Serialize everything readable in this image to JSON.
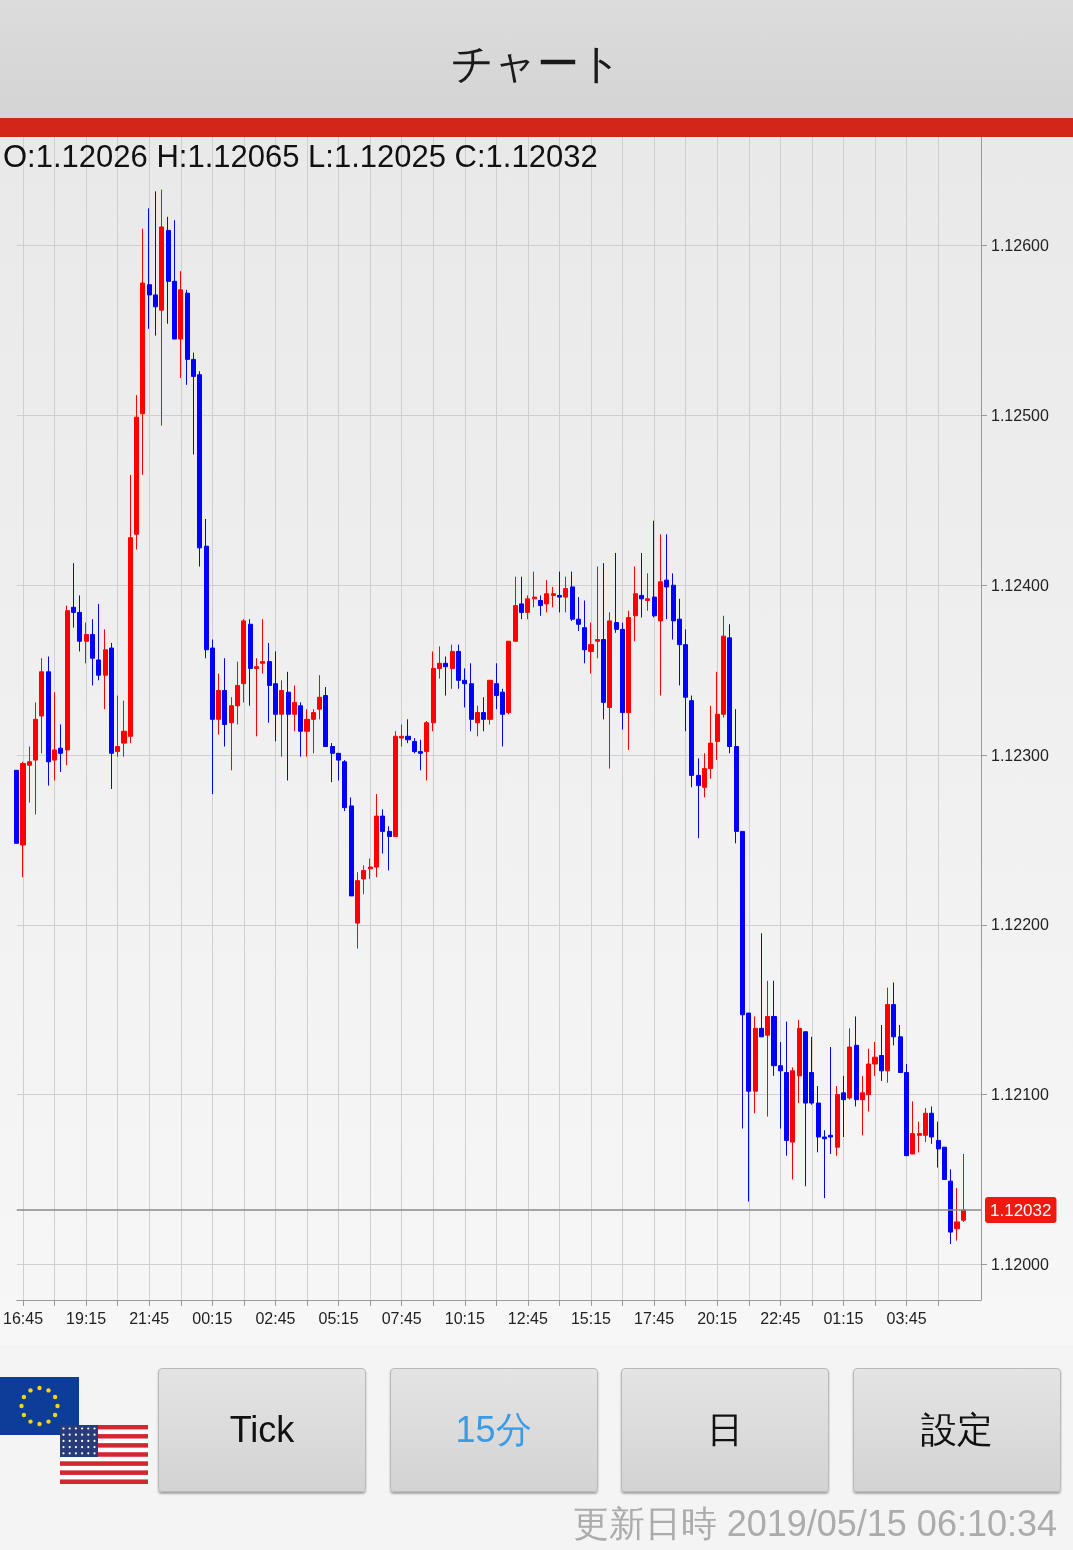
{
  "chart_data": {
    "type": "candlestick",
    "title": "チャート",
    "annotations": [
      "O:1.12026 H:1.12065 L:1.12025 C:1.12032",
      "Tick",
      "15分",
      "日",
      "設定",
      "更新日時 2019/05/15 06:10:34"
    ],
    "x": [
      "2019-05-13T16:30",
      "2019-05-13T16:45",
      "2019-05-13T17:00",
      "2019-05-13T17:15",
      "2019-05-13T17:30",
      "2019-05-13T17:45",
      "2019-05-13T18:00",
      "2019-05-13T18:15",
      "2019-05-13T18:30",
      "2019-05-13T18:45",
      "2019-05-13T19:00",
      "2019-05-13T19:15",
      "2019-05-13T19:30",
      "2019-05-13T19:45",
      "2019-05-13T20:00",
      "2019-05-13T20:15",
      "2019-05-13T20:30",
      "2019-05-13T20:45",
      "2019-05-13T21:00",
      "2019-05-13T21:15",
      "2019-05-13T21:30",
      "2019-05-13T21:45",
      "2019-05-13T22:00",
      "2019-05-13T22:15",
      "2019-05-13T22:30",
      "2019-05-13T22:45",
      "2019-05-13T23:00",
      "2019-05-13T23:15",
      "2019-05-13T23:30",
      "2019-05-13T23:45",
      "2019-05-14T00:00",
      "2019-05-14T00:15",
      "2019-05-14T00:30",
      "2019-05-14T00:45",
      "2019-05-14T01:00",
      "2019-05-14T01:15",
      "2019-05-14T01:30",
      "2019-05-14T01:45",
      "2019-05-14T02:00",
      "2019-05-14T02:15",
      "2019-05-14T02:30",
      "2019-05-14T02:45",
      "2019-05-14T03:00",
      "2019-05-14T03:15",
      "2019-05-14T03:30",
      "2019-05-14T03:45",
      "2019-05-14T04:00",
      "2019-05-14T04:15",
      "2019-05-14T04:30",
      "2019-05-14T04:45",
      "2019-05-14T05:00",
      "2019-05-14T05:15",
      "2019-05-14T05:30",
      "2019-05-14T05:45",
      "2019-05-14T06:00",
      "2019-05-14T06:15",
      "2019-05-14T06:30",
      "2019-05-14T06:45",
      "2019-05-14T07:00",
      "2019-05-14T07:15",
      "2019-05-14T07:30",
      "2019-05-14T07:45",
      "2019-05-14T08:00",
      "2019-05-14T08:15",
      "2019-05-14T08:30",
      "2019-05-14T08:45",
      "2019-05-14T09:00",
      "2019-05-14T09:15",
      "2019-05-14T09:30",
      "2019-05-14T09:45",
      "2019-05-14T10:00",
      "2019-05-14T10:15",
      "2019-05-14T10:30",
      "2019-05-14T10:45",
      "2019-05-14T11:00",
      "2019-05-14T11:15",
      "2019-05-14T11:30",
      "2019-05-14T11:45",
      "2019-05-14T12:00",
      "2019-05-14T12:15",
      "2019-05-14T12:30",
      "2019-05-14T12:45",
      "2019-05-14T13:00",
      "2019-05-14T13:15",
      "2019-05-14T13:30",
      "2019-05-14T13:45",
      "2019-05-14T14:00",
      "2019-05-14T14:15",
      "2019-05-14T14:30",
      "2019-05-14T14:45",
      "2019-05-14T15:00",
      "2019-05-14T15:15",
      "2019-05-14T15:30",
      "2019-05-14T15:45",
      "2019-05-14T16:00",
      "2019-05-14T16:15",
      "2019-05-14T16:30",
      "2019-05-14T16:45",
      "2019-05-14T17:00",
      "2019-05-14T17:15",
      "2019-05-14T17:30",
      "2019-05-14T17:45",
      "2019-05-14T18:00",
      "2019-05-14T18:15",
      "2019-05-14T18:30",
      "2019-05-14T18:45",
      "2019-05-14T19:00",
      "2019-05-14T19:15",
      "2019-05-14T19:30",
      "2019-05-14T19:45",
      "2019-05-14T20:00",
      "2019-05-14T20:15",
      "2019-05-14T20:30",
      "2019-05-14T20:45",
      "2019-05-14T21:00",
      "2019-05-14T21:15",
      "2019-05-14T21:30",
      "2019-05-14T21:45",
      "2019-05-14T22:00",
      "2019-05-14T22:15",
      "2019-05-14T22:30",
      "2019-05-14T22:45",
      "2019-05-14T23:00",
      "2019-05-14T23:15",
      "2019-05-14T23:30",
      "2019-05-14T23:45",
      "2019-05-15T00:00",
      "2019-05-15T00:15",
      "2019-05-15T00:30",
      "2019-05-15T00:45",
      "2019-05-15T01:00",
      "2019-05-15T01:15",
      "2019-05-15T01:30",
      "2019-05-15T01:45",
      "2019-05-15T02:00",
      "2019-05-15T02:15",
      "2019-05-15T02:30",
      "2019-05-15T02:45",
      "2019-05-15T03:00",
      "2019-05-15T03:15",
      "2019-05-15T03:30",
      "2019-05-15T03:45",
      "2019-05-15T04:00",
      "2019-05-15T04:15",
      "2019-05-15T04:30",
      "2019-05-15T04:45",
      "2019-05-15T05:00",
      "2019-05-15T05:15",
      "2019-05-15T05:30",
      "2019-05-15T05:45",
      "2019-05-15T06:00"
    ],
    "ohlc": [
      [
        1.12291,
        1.12291,
        1.12248,
        1.12248
      ],
      [
        1.12247,
        1.12296,
        1.12228,
        1.12295
      ],
      [
        1.12294,
        1.12305,
        1.12272,
        1.12296
      ],
      [
        1.12297,
        1.12331,
        1.12265,
        1.12321
      ],
      [
        1.12323,
        1.12357,
        1.12301,
        1.12349
      ],
      [
        1.12349,
        1.12358,
        1.12282,
        1.12296
      ],
      [
        1.12297,
        1.12337,
        1.12285,
        1.12303
      ],
      [
        1.12304,
        1.12318,
        1.1229,
        1.12301
      ],
      [
        1.12303,
        1.12388,
        1.12294,
        1.12385
      ],
      [
        1.12387,
        1.12413,
        1.12375,
        1.12384
      ],
      [
        1.12384,
        1.12394,
        1.12361,
        1.12367
      ],
      [
        1.12367,
        1.12378,
        1.12354,
        1.12371
      ],
      [
        1.12371,
        1.1238,
        1.12341,
        1.12357
      ],
      [
        1.12356,
        1.12389,
        1.12344,
        1.12347
      ],
      [
        1.12347,
        1.12374,
        1.12327,
        1.12362
      ],
      [
        1.12363,
        1.12366,
        1.1228,
        1.12301
      ],
      [
        1.12302,
        1.12335,
        1.12299,
        1.12305
      ],
      [
        1.12307,
        1.12332,
        1.12299,
        1.12314
      ],
      [
        1.12311,
        1.12465,
        1.12307,
        1.12428
      ],
      [
        1.1243,
        1.12512,
        1.12421,
        1.12499
      ],
      [
        1.12501,
        1.1261,
        1.12465,
        1.12578
      ],
      [
        1.12577,
        1.12622,
        1.12551,
        1.12571
      ],
      [
        1.12571,
        1.12632,
        1.12547,
        1.12564
      ],
      [
        1.12562,
        1.12633,
        1.12494,
        1.12611
      ],
      [
        1.12609,
        1.12617,
        1.12554,
        1.12579
      ],
      [
        1.12579,
        1.12615,
        1.12545,
        1.12545
      ],
      [
        1.12545,
        1.12585,
        1.12522,
        1.12574
      ],
      [
        1.12572,
        1.12574,
        1.12518,
        1.12533
      ],
      [
        1.12533,
        1.12537,
        1.12477,
        1.12523
      ],
      [
        1.12524,
        1.12526,
        1.12411,
        1.12422
      ],
      [
        1.12423,
        1.12439,
        1.12357,
        1.12362
      ],
      [
        1.12363,
        1.12368,
        1.12277,
        1.12321
      ],
      [
        1.12321,
        1.12348,
        1.12312,
        1.12338
      ],
      [
        1.12338,
        1.12357,
        1.12305,
        1.12318
      ],
      [
        1.12319,
        1.12334,
        1.12291,
        1.12329
      ],
      [
        1.12329,
        1.12355,
        1.12318,
        1.12341
      ],
      [
        1.12342,
        1.1238,
        1.12331,
        1.12379
      ],
      [
        1.12377,
        1.1238,
        1.12329,
        1.12351
      ],
      [
        1.12351,
        1.12357,
        1.12311,
        1.12352
      ],
      [
        1.12354,
        1.1238,
        1.12348,
        1.12355
      ],
      [
        1.12355,
        1.12366,
        1.12319,
        1.12341
      ],
      [
        1.12342,
        1.12361,
        1.12308,
        1.12324
      ],
      [
        1.12324,
        1.12344,
        1.12299,
        1.12338
      ],
      [
        1.12337,
        1.12349,
        1.12285,
        1.12324
      ],
      [
        1.12324,
        1.12341,
        1.12314,
        1.12331
      ],
      [
        1.12329,
        1.12331,
        1.12299,
        1.12314
      ],
      [
        1.12314,
        1.12327,
        1.12299,
        1.12321
      ],
      [
        1.12321,
        1.12327,
        1.12301,
        1.12325
      ],
      [
        1.12327,
        1.12347,
        1.12321,
        1.12334
      ],
      [
        1.12335,
        1.1234,
        1.12305,
        1.12305
      ],
      [
        1.12305,
        1.12307,
        1.12284,
        1.12301
      ],
      [
        1.12301,
        1.12301,
        1.12285,
        1.12297
      ],
      [
        1.12296,
        1.12297,
        1.12267,
        1.12269
      ],
      [
        1.1227,
        1.12275,
        1.12217,
        1.12217
      ],
      [
        1.12201,
        1.12231,
        1.12186,
        1.12226
      ],
      [
        1.12227,
        1.12235,
        1.12218,
        1.12232
      ],
      [
        1.12233,
        1.12239,
        1.12227,
        1.12234
      ],
      [
        1.12234,
        1.12277,
        1.12228,
        1.12264
      ],
      [
        1.12264,
        1.12268,
        1.12242,
        1.12255
      ],
      [
        1.12255,
        1.12258,
        1.12232,
        1.12252
      ],
      [
        1.12252,
        1.12314,
        1.12252,
        1.12311
      ],
      [
        1.1231,
        1.12318,
        1.12305,
        1.12311
      ],
      [
        1.12311,
        1.12321,
        1.12307,
        1.12309
      ],
      [
        1.12308,
        1.1231,
        1.12301,
        1.12302
      ],
      [
        1.12302,
        1.12309,
        1.12291,
        1.12301
      ],
      [
        1.12302,
        1.1232,
        1.12285,
        1.12319
      ],
      [
        1.12319,
        1.12361,
        1.12314,
        1.12351
      ],
      [
        1.12351,
        1.12364,
        1.12345,
        1.12354
      ],
      [
        1.12354,
        1.12358,
        1.12335,
        1.12352
      ],
      [
        1.12351,
        1.12365,
        1.12339,
        1.12361
      ],
      [
        1.12361,
        1.12365,
        1.12339,
        1.12344
      ],
      [
        1.12344,
        1.12351,
        1.12328,
        1.12342
      ],
      [
        1.12342,
        1.12354,
        1.12314,
        1.12321
      ],
      [
        1.12319,
        1.12329,
        1.12311,
        1.12325
      ],
      [
        1.12325,
        1.12334,
        1.12314,
        1.12321
      ],
      [
        1.12321,
        1.12344,
        1.12318,
        1.12344
      ],
      [
        1.12342,
        1.12354,
        1.12327,
        1.12335
      ],
      [
        1.12337,
        1.12339,
        1.12305,
        1.12324
      ],
      [
        1.12325,
        1.12367,
        1.12324,
        1.12367
      ],
      [
        1.12367,
        1.12405,
        1.12367,
        1.12388
      ],
      [
        1.12389,
        1.12405,
        1.1238,
        1.12384
      ],
      [
        1.12384,
        1.12394,
        1.1238,
        1.12392
      ],
      [
        1.12392,
        1.12408,
        1.12387,
        1.12393
      ],
      [
        1.12391,
        1.12394,
        1.12382,
        1.12388
      ],
      [
        1.12389,
        1.12403,
        1.12384,
        1.12395
      ],
      [
        1.12394,
        1.12399,
        1.12387,
        1.12395
      ],
      [
        1.12394,
        1.12408,
        1.12384,
        1.12393
      ],
      [
        1.12393,
        1.12405,
        1.12384,
        1.12398
      ],
      [
        1.12399,
        1.12408,
        1.12379,
        1.1238
      ],
      [
        1.1238,
        1.12393,
        1.12373,
        1.12377
      ],
      [
        1.12375,
        1.12391,
        1.12354,
        1.12362
      ],
      [
        1.12361,
        1.12378,
        1.12348,
        1.12365
      ],
      [
        1.12367,
        1.12411,
        1.12357,
        1.12368
      ],
      [
        1.12368,
        1.12413,
        1.12321,
        1.12331
      ],
      [
        1.12328,
        1.12384,
        1.12292,
        1.12379
      ],
      [
        1.12378,
        1.12419,
        1.12372,
        1.12374
      ],
      [
        1.12374,
        1.12378,
        1.12315,
        1.12325
      ],
      [
        1.12325,
        1.12385,
        1.12303,
        1.12381
      ],
      [
        1.12382,
        1.12411,
        1.12367,
        1.12395
      ],
      [
        1.12394,
        1.12419,
        1.12381,
        1.12392
      ],
      [
        1.12391,
        1.12407,
        1.12385,
        1.12392
      ],
      [
        1.12393,
        1.12438,
        1.12381,
        1.12382
      ],
      [
        1.12379,
        1.1243,
        1.12335,
        1.12402
      ],
      [
        1.12403,
        1.1243,
        1.1238,
        1.12399
      ],
      [
        1.124,
        1.12407,
        1.12368,
        1.12379
      ],
      [
        1.1238,
        1.12392,
        1.12341,
        1.12365
      ],
      [
        1.12365,
        1.12374,
        1.12314,
        1.12334
      ],
      [
        1.12332,
        1.12335,
        1.12281,
        1.12288
      ],
      [
        1.12288,
        1.12298,
        1.12251,
        1.12282
      ],
      [
        1.12281,
        1.12301,
        1.12275,
        1.12292
      ],
      [
        1.12292,
        1.12329,
        1.12286,
        1.12307
      ],
      [
        1.12308,
        1.12349,
        1.12297,
        1.12324
      ],
      [
        1.12324,
        1.12382,
        1.12322,
        1.1237
      ],
      [
        1.12369,
        1.12377,
        1.12301,
        1.12305
      ],
      [
        1.12305,
        1.12327,
        1.12248,
        1.12255
      ],
      [
        1.12255,
        1.12255,
        1.1208,
        1.12147
      ],
      [
        1.12148,
        1.12148,
        1.12037,
        1.12102
      ],
      [
        1.12102,
        1.12146,
        1.12089,
        1.12139
      ],
      [
        1.12139,
        1.12195,
        1.12134,
        1.12134
      ],
      [
        1.12135,
        1.12167,
        1.12087,
        1.12146
      ],
      [
        1.12146,
        1.12167,
        1.12111,
        1.12117
      ],
      [
        1.12117,
        1.12131,
        1.1208,
        1.12114
      ],
      [
        1.12113,
        1.12143,
        1.12064,
        1.12073
      ],
      [
        1.12072,
        1.12116,
        1.1205,
        1.12114
      ],
      [
        1.12111,
        1.12144,
        1.12095,
        1.12139
      ],
      [
        1.12137,
        1.12137,
        1.12046,
        1.12095
      ],
      [
        1.12113,
        1.12134,
        1.12094,
        1.12095
      ],
      [
        1.12095,
        1.12105,
        1.12066,
        1.12075
      ],
      [
        1.12075,
        1.12079,
        1.12039,
        1.12074
      ],
      [
        1.12076,
        1.12128,
        1.12065,
        1.12075
      ],
      [
        1.12069,
        1.12105,
        1.12064,
        1.121
      ],
      [
        1.12101,
        1.12111,
        1.12075,
        1.12097
      ],
      [
        1.12098,
        1.12139,
        1.12097,
        1.12128
      ],
      [
        1.12129,
        1.12146,
        1.12093,
        1.12097
      ],
      [
        1.12097,
        1.12111,
        1.12076,
        1.12101
      ],
      [
        1.121,
        1.12127,
        1.1209,
        1.12118
      ],
      [
        1.12118,
        1.12131,
        1.12111,
        1.12122
      ],
      [
        1.12123,
        1.12141,
        1.12108,
        1.12114
      ],
      [
        1.12114,
        1.12163,
        1.12107,
        1.12153
      ],
      [
        1.12153,
        1.12166,
        1.12129,
        1.12134
      ],
      [
        1.12134,
        1.12141,
        1.12113,
        1.12113
      ],
      [
        1.12113,
        1.12118,
        1.12064,
        1.12064
      ],
      [
        1.12065,
        1.12096,
        1.12065,
        1.12077
      ],
      [
        1.12076,
        1.12084,
        1.12066,
        1.12077
      ],
      [
        1.12076,
        1.12092,
        1.12072,
        1.12089
      ],
      [
        1.12089,
        1.12093,
        1.12071,
        1.12075
      ],
      [
        1.12073,
        1.12084,
        1.12057,
        1.12068
      ],
      [
        1.12069,
        1.12069,
        1.1205,
        1.1205
      ],
      [
        1.12049,
        1.12056,
        1.12012,
        1.12019
      ],
      [
        1.12021,
        1.12045,
        1.12014,
        1.12025
      ],
      [
        1.12026,
        1.12065,
        1.12025,
        1.12032
      ]
    ],
    "colors": [
      "#0000ff",
      "#ff0000",
      "#ff0000",
      "#ff0000",
      "#ff0000",
      "#0000ff",
      "#ff0000",
      "#0000ff",
      "#ff0000",
      "#0000ff",
      "#0000ff",
      "#ff0000",
      "#0000ff",
      "#0000ff",
      "#ff0000",
      "#0000ff",
      "#ff0000",
      "#ff0000",
      "#ff0000",
      "#ff0000",
      "#ff0000",
      "#0000ff",
      "#0000ff",
      "#ff0000",
      "#0000ff",
      "#0000ff",
      "#ff0000",
      "#0000ff",
      "#0000ff",
      "#0000ff",
      "#0000ff",
      "#0000ff",
      "#ff0000",
      "#0000ff",
      "#ff0000",
      "#ff0000",
      "#ff0000",
      "#0000ff",
      "#ff0000",
      "#ff0000",
      "#0000ff",
      "#0000ff",
      "#ff0000",
      "#0000ff",
      "#ff0000",
      "#0000ff",
      "#ff0000",
      "#ff0000",
      "#ff0000",
      "#0000ff",
      "#0000ff",
      "#0000ff",
      "#0000ff",
      "#0000ff",
      "#ff0000",
      "#ff0000",
      "#ff0000",
      "#ff0000",
      "#0000ff",
      "#0000ff",
      "#ff0000",
      "#ff0000",
      "#0000ff",
      "#0000ff",
      "#0000ff",
      "#ff0000",
      "#ff0000",
      "#ff0000",
      "#0000ff",
      "#ff0000",
      "#0000ff",
      "#0000ff",
      "#0000ff",
      "#ff0000",
      "#0000ff",
      "#ff0000",
      "#0000ff",
      "#0000ff",
      "#ff0000",
      "#ff0000",
      "#0000ff",
      "#ff0000",
      "#ff0000",
      "#0000ff",
      "#ff0000",
      "#ff0000",
      "#0000ff",
      "#ff0000",
      "#0000ff",
      "#0000ff",
      "#0000ff",
      "#ff0000",
      "#ff0000",
      "#0000ff",
      "#ff0000",
      "#0000ff",
      "#0000ff",
      "#ff0000",
      "#ff0000",
      "#0000ff",
      "#ff0000",
      "#0000ff",
      "#ff0000",
      "#0000ff",
      "#0000ff",
      "#0000ff",
      "#0000ff",
      "#0000ff",
      "#0000ff",
      "#ff0000",
      "#ff0000",
      "#ff0000",
      "#ff0000",
      "#0000ff",
      "#0000ff",
      "#0000ff",
      "#0000ff",
      "#ff0000",
      "#0000ff",
      "#ff0000",
      "#0000ff",
      "#0000ff",
      "#0000ff",
      "#ff0000",
      "#ff0000",
      "#0000ff",
      "#0000ff",
      "#0000ff",
      "#0000ff",
      "#0000ff",
      "#ff0000",
      "#0000ff",
      "#ff0000",
      "#0000ff",
      "#ff0000",
      "#ff0000",
      "#ff0000",
      "#0000ff",
      "#ff0000",
      "#0000ff",
      "#0000ff",
      "#0000ff",
      "#ff0000",
      "#ff0000",
      "#ff0000",
      "#0000ff",
      "#0000ff",
      "#0000ff",
      "#0000ff",
      "#ff0000",
      "#ff0000"
    ],
    "xlim": [
      "2019-05-13T16:30",
      "2019-05-15T06:42"
    ],
    "xticks": [
      {
        "value": "2019-05-13T16:45",
        "label": "16:45"
      },
      {
        "value": "2019-05-13T18:00",
        "label": null
      },
      {
        "value": "2019-05-13T19:15",
        "label": "19:15"
      },
      {
        "value": "2019-05-13T20:30",
        "label": null
      },
      {
        "value": "2019-05-13T21:45",
        "label": "21:45"
      },
      {
        "value": "2019-05-13T23:00",
        "label": null
      },
      {
        "value": "2019-05-14T00:15",
        "label": "00:15"
      },
      {
        "value": "2019-05-14T01:30",
        "label": null
      },
      {
        "value": "2019-05-14T02:45",
        "label": "02:45"
      },
      {
        "value": "2019-05-14T04:00",
        "label": null
      },
      {
        "value": "2019-05-14T05:15",
        "label": "05:15"
      },
      {
        "value": "2019-05-14T06:30",
        "label": null
      },
      {
        "value": "2019-05-14T07:45",
        "label": "07:45"
      },
      {
        "value": "2019-05-14T09:00",
        "label": null
      },
      {
        "value": "2019-05-14T10:15",
        "label": "10:15"
      },
      {
        "value": "2019-05-14T11:30",
        "label": null
      },
      {
        "value": "2019-05-14T12:45",
        "label": "12:45"
      },
      {
        "value": "2019-05-14T14:00",
        "label": null
      },
      {
        "value": "2019-05-14T15:15",
        "label": "15:15"
      },
      {
        "value": "2019-05-14T16:30",
        "label": null
      },
      {
        "value": "2019-05-14T17:45",
        "label": "17:45"
      },
      {
        "value": "2019-05-14T19:00",
        "label": null
      },
      {
        "value": "2019-05-14T20:15",
        "label": "20:15"
      },
      {
        "value": "2019-05-14T21:30",
        "label": null
      },
      {
        "value": "2019-05-14T22:45",
        "label": "22:45"
      },
      {
        "value": "2019-05-15T00:00",
        "label": null
      },
      {
        "value": "2019-05-15T01:15",
        "label": "01:15"
      },
      {
        "value": "2019-05-15T02:30",
        "label": null
      },
      {
        "value": "2019-05-15T03:45",
        "label": "03:45"
      },
      {
        "value": "2019-05-15T05:00",
        "label": null
      }
    ],
    "ylim": [
      1.11979,
      1.12664
    ],
    "yticks": [
      {
        "value": 1.12,
        "label": "1.12000"
      },
      {
        "value": 1.121,
        "label": "1.12100"
      },
      {
        "value": 1.122,
        "label": "1.12200"
      },
      {
        "value": 1.123,
        "label": "1.12300"
      },
      {
        "value": 1.124,
        "label": "1.12400"
      },
      {
        "value": 1.125,
        "label": "1.12500"
      },
      {
        "value": 1.126,
        "label": "1.12600"
      }
    ],
    "grid": true,
    "ref_lines": [
      {
        "axis": "y",
        "value": 1.12032,
        "label": "1.12032",
        "color": "#8a8a8a"
      }
    ]
  }
}
